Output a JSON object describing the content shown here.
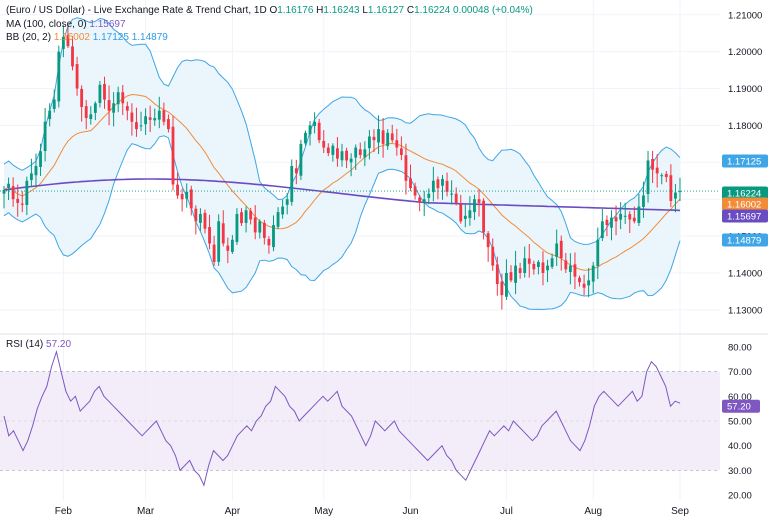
{
  "legend": {
    "title": "(Euro / US Dollar) - Live Exchange Rate & Trend Chart, 1D",
    "open_label": "O",
    "open": "1.16176",
    "high_label": "H",
    "high": "1.16243",
    "low_label": "L",
    "low": "1.16127",
    "close_label": "C",
    "close": "1.16224",
    "change": "0.00048 (+0.04%)",
    "ma_label": "MA (100, close, 0)",
    "ma_value": "1.15697",
    "bb_label": "BB (20, 2)",
    "bb_basis": "1.16002",
    "bb_upper": "1.17125",
    "bb_lower": "1.14879",
    "rsi_label": "RSI (14)",
    "rsi_value": "57.20"
  },
  "colors": {
    "up": "#089981",
    "down": "#f23645",
    "ma": "#6a4cc2",
    "bb_basis": "#f28c38",
    "bb_bands": "#3ea6e6",
    "bb_fill": "#e8f3fc",
    "rsi": "#7e57c2",
    "rsi_fill": "#ede7f6",
    "last_price": "#089981"
  },
  "chart_data": [
    {
      "type": "candlestick",
      "ylim": [
        1.124,
        1.214
      ],
      "yticks": [
        "1.13000",
        "1.14000",
        "1.15000",
        "1.16000",
        "1.17000",
        "1.18000",
        "1.19000",
        "1.20000",
        "1.21000"
      ],
      "xticks": [
        "Feb",
        "Mar",
        "Apr",
        "May",
        "Jun",
        "Jul",
        "Aug",
        "Sep"
      ],
      "price_tags": [
        {
          "label": "1.17125",
          "value": 1.17125,
          "kind": "bb_upper"
        },
        {
          "label": "1.16224",
          "value": 1.16224,
          "kind": "last"
        },
        {
          "label": "1.16002",
          "value": 1.16002,
          "kind": "bb_basis"
        },
        {
          "label": "1.15697",
          "value": 1.15697,
          "kind": "ma"
        },
        {
          "label": "1.14879",
          "value": 1.14879,
          "kind": "bb_lower"
        }
      ],
      "closes": [
        1.1625,
        1.1642,
        1.16,
        1.159,
        1.1585,
        1.165,
        1.167,
        1.169,
        1.173,
        1.181,
        1.184,
        1.187,
        1.2,
        1.204,
        1.2015,
        1.196,
        1.19,
        1.185,
        1.182,
        1.183,
        1.186,
        1.191,
        1.187,
        1.184,
        1.186,
        1.189,
        1.186,
        1.184,
        1.181,
        1.179,
        1.18,
        1.1825,
        1.1815,
        1.182,
        1.184,
        1.181,
        1.179,
        1.164,
        1.161,
        1.16,
        1.162,
        1.1575,
        1.154,
        1.156,
        1.152,
        1.148,
        1.143,
        1.154,
        1.148,
        1.146,
        1.149,
        1.156,
        1.1535,
        1.157,
        1.1545,
        1.151,
        1.154,
        1.1495,
        1.1475,
        1.153,
        1.1565,
        1.158,
        1.16,
        1.169,
        1.167,
        1.175,
        1.178,
        1.18,
        1.181,
        1.176,
        1.174,
        1.1725,
        1.1745,
        1.171,
        1.173,
        1.1705,
        1.171,
        1.174,
        1.172,
        1.1735,
        1.177,
        1.176,
        1.179,
        1.175,
        1.178,
        1.176,
        1.174,
        1.172,
        1.165,
        1.163,
        1.161,
        1.159,
        1.16,
        1.1615,
        1.165,
        1.163,
        1.1655,
        1.162,
        1.1615,
        1.159,
        1.154,
        1.1555,
        1.157,
        1.16,
        1.159,
        1.151,
        1.147,
        1.142,
        1.137,
        1.134,
        1.14,
        1.138,
        1.142,
        1.14,
        1.144,
        1.1425,
        1.141,
        1.143,
        1.14,
        1.142,
        1.144,
        1.148,
        1.144,
        1.141,
        1.142,
        1.139,
        1.1375,
        1.136,
        1.138,
        1.142,
        1.149,
        1.154,
        1.153,
        1.155,
        1.154,
        1.156,
        1.1555,
        1.1545,
        1.154,
        1.158,
        1.161,
        1.1705,
        1.168,
        1.167,
        1.1665,
        1.166,
        1.1595,
        1.1618,
        1.1622
      ],
      "ma_start": 1.1625,
      "ma_end": 1.15697,
      "bb_basis_last": 1.16002,
      "bb_upper_last": 1.17125,
      "bb_lower_last": 1.14879
    },
    {
      "type": "line",
      "name": "RSI (14)",
      "ylim": [
        18,
        84
      ],
      "yticks": [
        "20.00",
        "30.00",
        "40.00",
        "50.00",
        "60.00",
        "70.00",
        "80.00"
      ],
      "band": [
        30,
        70
      ],
      "midline": 50,
      "last_tag": {
        "label": "57.20",
        "value": 57.2
      },
      "values": [
        52,
        44,
        46,
        42,
        38,
        42,
        48,
        55,
        60,
        64,
        72,
        78,
        70,
        62,
        58,
        60,
        54,
        56,
        58,
        62,
        64,
        60,
        58,
        56,
        54,
        52,
        50,
        48,
        46,
        44,
        46,
        48,
        50,
        46,
        42,
        40,
        36,
        30,
        32,
        34,
        30,
        28,
        24,
        32,
        38,
        36,
        34,
        36,
        40,
        44,
        46,
        48,
        46,
        50,
        52,
        56,
        58,
        64,
        62,
        60,
        56,
        54,
        50,
        52,
        54,
        56,
        58,
        60,
        58,
        60,
        62,
        56,
        54,
        52,
        48,
        44,
        40,
        44,
        50,
        48,
        46,
        48,
        50,
        46,
        44,
        42,
        40,
        38,
        36,
        34,
        36,
        38,
        40,
        36,
        34,
        30,
        28,
        26,
        30,
        34,
        38,
        42,
        46,
        44,
        46,
        48,
        46,
        50,
        48,
        46,
        44,
        42,
        44,
        48,
        50,
        52,
        54,
        50,
        46,
        42,
        40,
        38,
        42,
        48,
        56,
        60,
        62,
        60,
        58,
        56,
        58,
        60,
        62,
        58,
        60,
        70,
        74,
        72,
        68,
        64,
        56,
        58,
        57.2
      ]
    }
  ]
}
